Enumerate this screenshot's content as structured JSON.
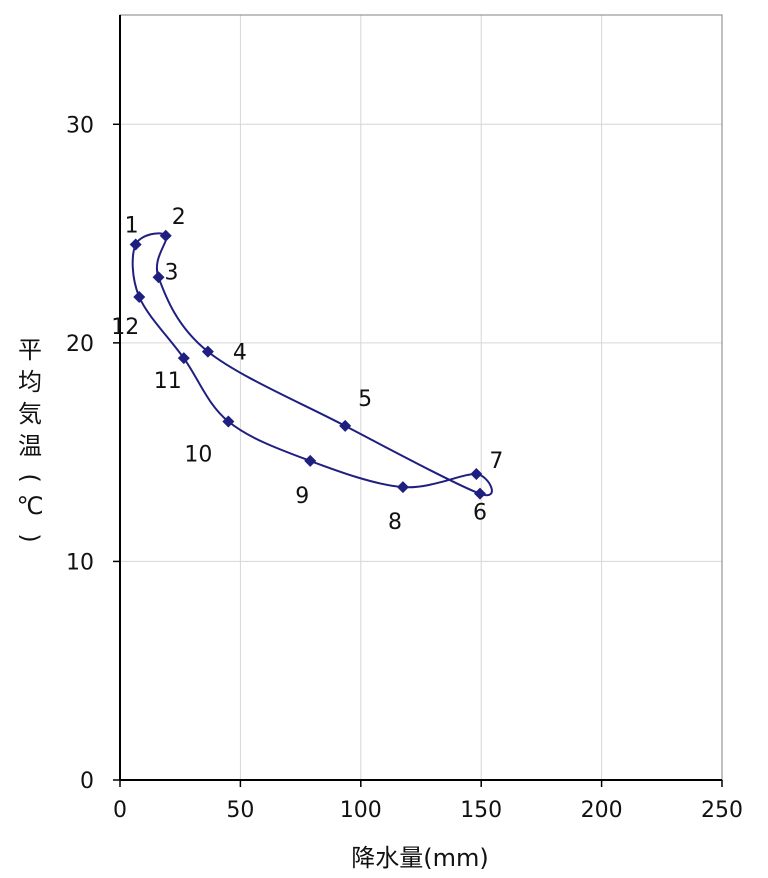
{
  "chart_data": {
    "type": "scatter",
    "title": "",
    "xlabel": "降水量(mm)",
    "ylabel_chars": [
      "平",
      "均",
      "気",
      "温",
      "(",
      "℃",
      ")"
    ],
    "xlim": [
      0,
      250
    ],
    "ylim": [
      0,
      35
    ],
    "x_ticks": [
      0,
      50,
      100,
      150,
      200,
      250
    ],
    "y_ticks": [
      0,
      10,
      20,
      30
    ],
    "grid": true,
    "line_color": "#1f1f80",
    "points": [
      {
        "label": "1",
        "x": 6.5,
        "y": 24.5
      },
      {
        "label": "2",
        "x": 19.0,
        "y": 24.9
      },
      {
        "label": "3",
        "x": 16.0,
        "y": 23.0
      },
      {
        "label": "4",
        "x": 36.5,
        "y": 19.6
      },
      {
        "label": "5",
        "x": 93.5,
        "y": 16.2
      },
      {
        "label": "6",
        "x": 149.5,
        "y": 13.1
      },
      {
        "label": "7",
        "x": 148.0,
        "y": 14.0
      },
      {
        "label": "8",
        "x": 117.5,
        "y": 13.4
      },
      {
        "label": "9",
        "x": 79.0,
        "y": 14.6
      },
      {
        "label": "10",
        "x": 45.0,
        "y": 16.4
      },
      {
        "label": "11",
        "x": 26.5,
        "y": 19.3
      },
      {
        "label": "12",
        "x": 8.0,
        "y": 22.1
      }
    ]
  }
}
